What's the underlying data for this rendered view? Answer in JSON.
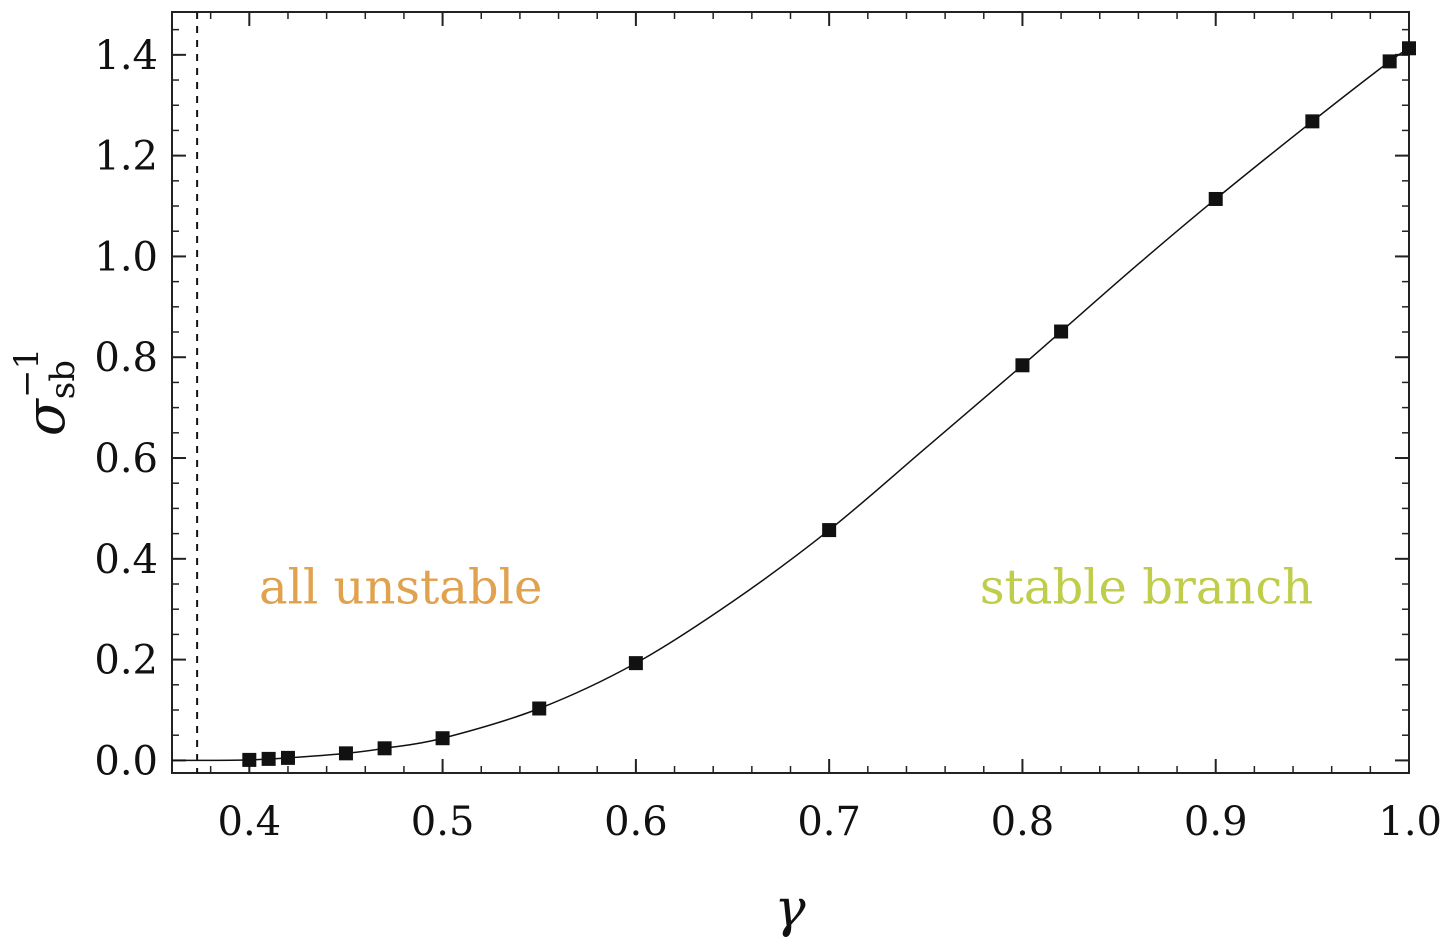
{
  "chart_data": {
    "type": "scatter",
    "xlabel": "γ",
    "ylabel": {
      "symbol": "σ",
      "superscript": "−1",
      "subscript": "sb"
    },
    "xlim": [
      0.36,
      1.0
    ],
    "ylim": [
      -0.025,
      1.485
    ],
    "x_ticks": [
      {
        "value": 0.4,
        "label": "0.4"
      },
      {
        "value": 0.5,
        "label": "0.5"
      },
      {
        "value": 0.6,
        "label": "0.6"
      },
      {
        "value": 0.7,
        "label": "0.7"
      },
      {
        "value": 0.8,
        "label": "0.8"
      },
      {
        "value": 0.9,
        "label": "0.9"
      },
      {
        "value": 1.0,
        "label": "1.0"
      }
    ],
    "y_ticks": [
      {
        "value": 0.0,
        "label": "0.0"
      },
      {
        "value": 0.2,
        "label": "0.2"
      },
      {
        "value": 0.4,
        "label": "0.4"
      },
      {
        "value": 0.6,
        "label": "0.6"
      },
      {
        "value": 0.8,
        "label": "0.8"
      },
      {
        "value": 1.0,
        "label": "1.0"
      },
      {
        "value": 1.2,
        "label": "1.2"
      },
      {
        "value": 1.4,
        "label": "1.4"
      }
    ],
    "x_minor_step": 0.02,
    "y_minor_step": 0.05,
    "grid": false,
    "threshold_line": {
      "x": 0.373,
      "style": "dashed"
    },
    "points": [
      {
        "x": 0.4,
        "y": 0.001
      },
      {
        "x": 0.41,
        "y": 0.003
      },
      {
        "x": 0.42,
        "y": 0.005
      },
      {
        "x": 0.45,
        "y": 0.014
      },
      {
        "x": 0.47,
        "y": 0.024
      },
      {
        "x": 0.5,
        "y": 0.044
      },
      {
        "x": 0.55,
        "y": 0.103
      },
      {
        "x": 0.6,
        "y": 0.193
      },
      {
        "x": 0.7,
        "y": 0.457
      },
      {
        "x": 0.8,
        "y": 0.784
      },
      {
        "x": 0.82,
        "y": 0.851
      },
      {
        "x": 0.9,
        "y": 1.114
      },
      {
        "x": 0.95,
        "y": 1.268
      },
      {
        "x": 0.99,
        "y": 1.387
      },
      {
        "x": 1.0,
        "y": 1.413
      }
    ],
    "fit_curve": [
      {
        "x": 0.36,
        "y": 0.0
      },
      {
        "x": 0.38,
        "y": 0.0
      },
      {
        "x": 0.4,
        "y": 0.001
      },
      {
        "x": 0.42,
        "y": 0.005
      },
      {
        "x": 0.45,
        "y": 0.014
      },
      {
        "x": 0.47,
        "y": 0.024
      },
      {
        "x": 0.5,
        "y": 0.044
      },
      {
        "x": 0.55,
        "y": 0.103
      },
      {
        "x": 0.6,
        "y": 0.193
      },
      {
        "x": 0.65,
        "y": 0.315
      },
      {
        "x": 0.7,
        "y": 0.457
      },
      {
        "x": 0.75,
        "y": 0.62
      },
      {
        "x": 0.8,
        "y": 0.784
      },
      {
        "x": 0.82,
        "y": 0.851
      },
      {
        "x": 0.86,
        "y": 0.985
      },
      {
        "x": 0.9,
        "y": 1.114
      },
      {
        "x": 0.95,
        "y": 1.268
      },
      {
        "x": 0.99,
        "y": 1.387
      },
      {
        "x": 1.0,
        "y": 1.413
      }
    ],
    "annotations": [
      {
        "text": "all unstable",
        "x": 0.405,
        "y": 0.345,
        "color": "#e0a24f"
      },
      {
        "text": "stable branch",
        "x": 0.778,
        "y": 0.345,
        "color": "#bfcd4a"
      }
    ]
  }
}
